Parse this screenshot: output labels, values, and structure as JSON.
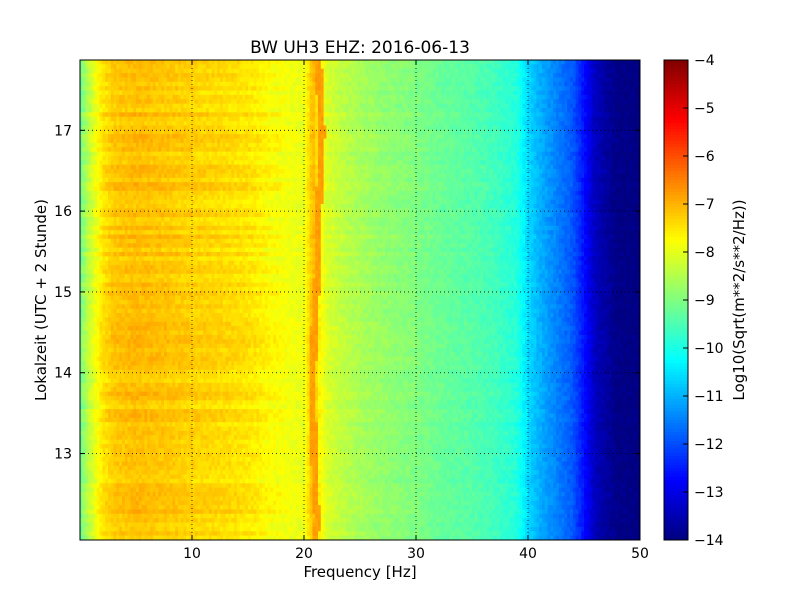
{
  "chart_data": {
    "type": "heatmap",
    "title": "BW UH3 EHZ: 2016-06-13",
    "xlabel": "Frequency [Hz]",
    "ylabel": "Lokalzeit (UTC + 2 Stunde)",
    "xlim": [
      0,
      50
    ],
    "ylim": [
      17.87,
      11.93
    ],
    "x_ticks": [
      10,
      20,
      30,
      40,
      50
    ],
    "x_tick_labels": [
      "10",
      "20",
      "30",
      "40",
      "50"
    ],
    "y_ticks": [
      13,
      14,
      15,
      16,
      17
    ],
    "y_tick_labels": [
      "13",
      "14",
      "15",
      "16",
      "17"
    ],
    "grid": true,
    "colormap": "jet",
    "colorbar": {
      "label": "Log10(Sqrt(m**2/s**2/Hz))",
      "range": [
        -14,
        -4
      ],
      "ticks": [
        -4,
        -5,
        -6,
        -7,
        -8,
        -9,
        -10,
        -11,
        -12,
        -13,
        -14
      ],
      "tick_labels": [
        "−4",
        "−5",
        "−6",
        "−7",
        "−8",
        "−9",
        "−10",
        "−11",
        "−12",
        "−13",
        "−14"
      ]
    },
    "spectrum_profile": {
      "frequency_hz": [
        0,
        0.5,
        1,
        2,
        3,
        5,
        8,
        10,
        12,
        14,
        15,
        16,
        17,
        18,
        19,
        20,
        20.8,
        21.3,
        22,
        23,
        25,
        27,
        30,
        32,
        35,
        37,
        39,
        40,
        41,
        42,
        43,
        44,
        45,
        46,
        48,
        50
      ],
      "log10_amplitude": [
        -9.2,
        -8.6,
        -8.2,
        -7.5,
        -7.2,
        -7.1,
        -7.2,
        -7.3,
        -7.35,
        -7.45,
        -7.5,
        -7.6,
        -7.75,
        -7.8,
        -7.9,
        -7.95,
        -7.0,
        -7.6,
        -8.1,
        -8.3,
        -8.6,
        -8.8,
        -9.0,
        -9.2,
        -9.4,
        -9.6,
        -9.9,
        -10.6,
        -11.0,
        -11.3,
        -11.6,
        -11.9,
        -12.6,
        -13.4,
        -13.95,
        -14.0
      ]
    },
    "narrowband_line": {
      "times_h": [
        11.93,
        12.2,
        12.5,
        13.0,
        13.5,
        14.0,
        14.5,
        15.0,
        15.5,
        16.0,
        16.5,
        17.0,
        17.5,
        17.87
      ],
      "frequency_hz": [
        21.0,
        21.2,
        21.0,
        20.9,
        20.8,
        20.8,
        20.9,
        21.1,
        21.3,
        21.3,
        21.5,
        21.6,
        21.4,
        21.3
      ],
      "log10_amplitude": -6.8
    }
  }
}
